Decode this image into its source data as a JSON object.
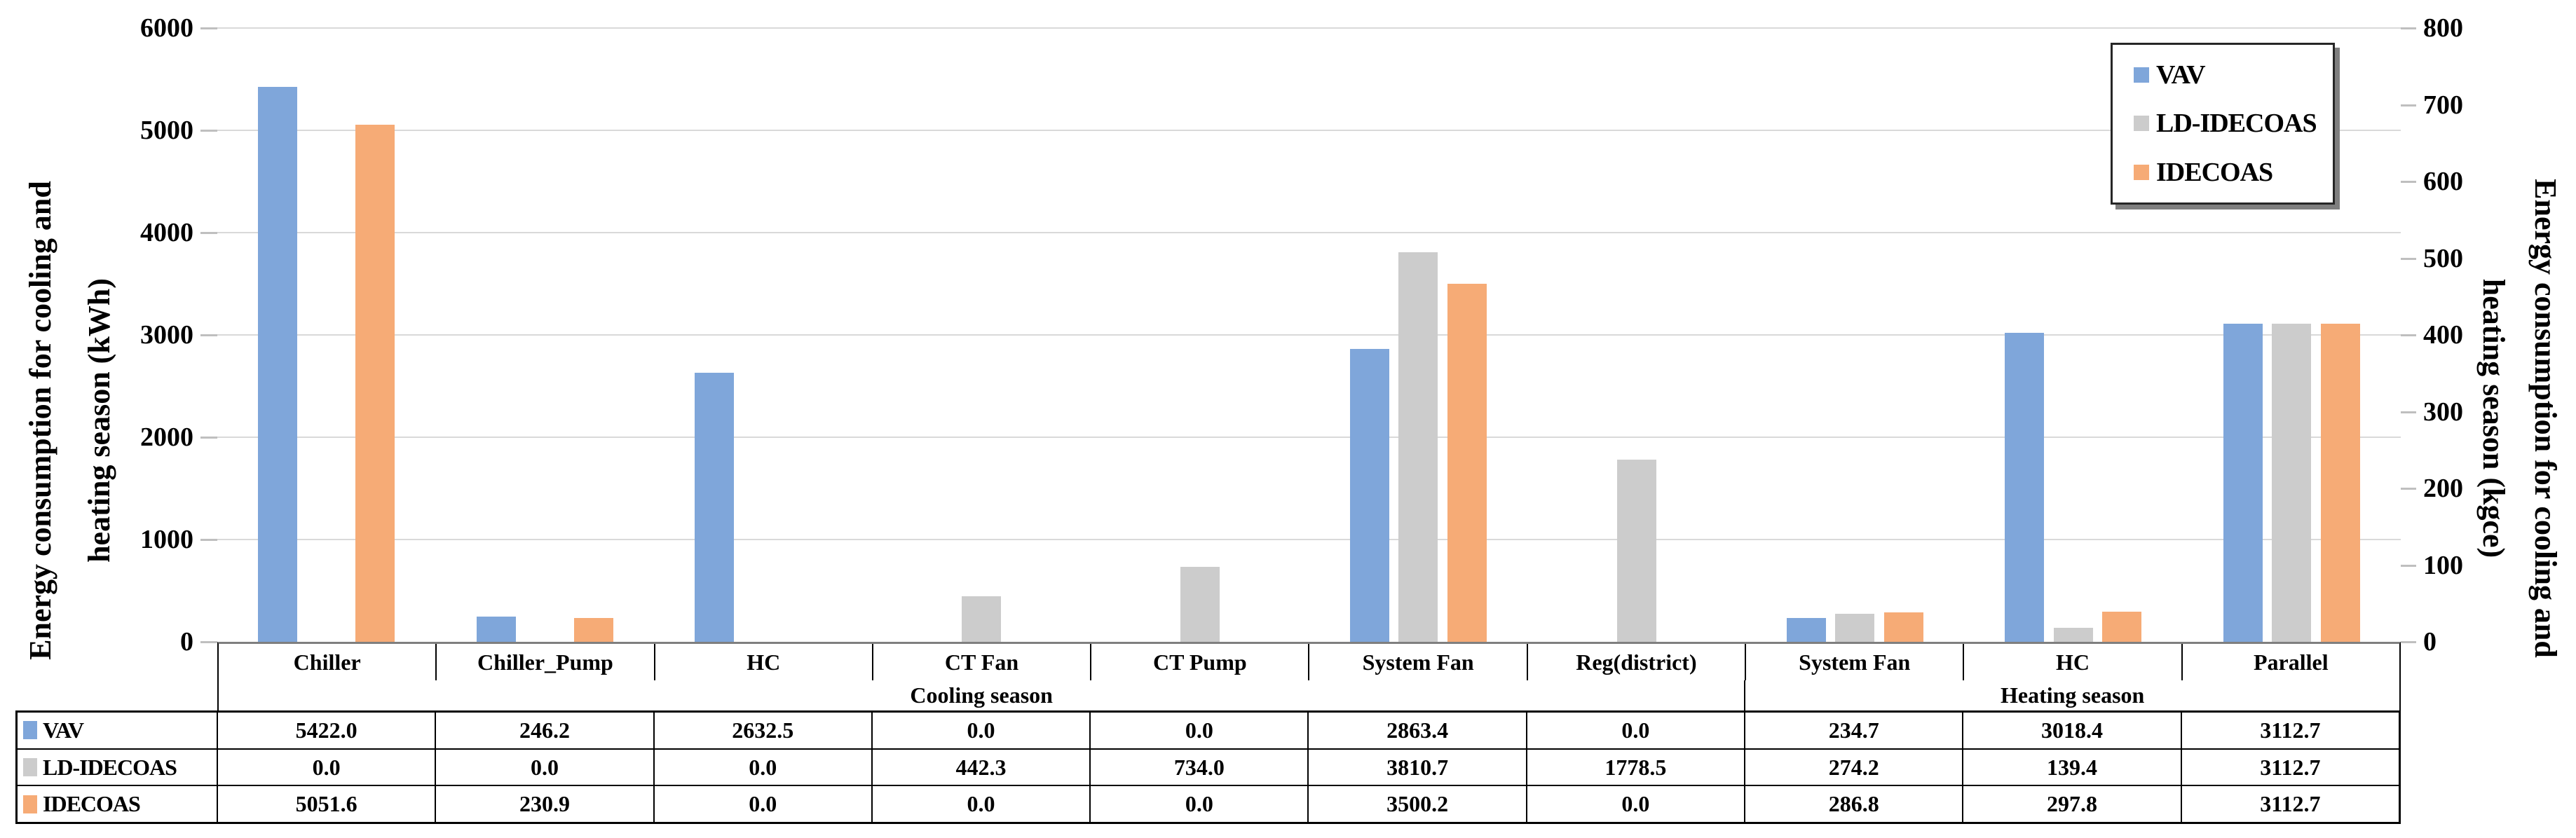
{
  "chart_data": {
    "type": "bar",
    "title": "",
    "categories": [
      "Chiller",
      "Chiller_Pump",
      "HC",
      "CT Fan",
      "CT Pump",
      "System Fan",
      "Reg(district)",
      "System Fan",
      "HC",
      "Parallel"
    ],
    "season_groups": [
      {
        "label": "Cooling season",
        "span": 7
      },
      {
        "label": "Heating season",
        "span": 3
      }
    ],
    "series": [
      {
        "name": "VAV",
        "color": "#7fa6da",
        "values": [
          5422.0,
          246.2,
          2632.5,
          0.0,
          0.0,
          2863.4,
          0.0,
          234.7,
          3018.4,
          3112.7
        ]
      },
      {
        "name": "LD-IDECOAS",
        "color": "#cccccc",
        "values": [
          0.0,
          0.0,
          0.0,
          442.3,
          734.0,
          3810.7,
          1778.5,
          274.2,
          139.4,
          3112.7
        ]
      },
      {
        "name": "IDECOAS",
        "color": "#f6ab76",
        "values": [
          5051.6,
          230.9,
          0.0,
          0.0,
          0.0,
          3500.2,
          0.0,
          286.8,
          297.8,
          3112.7
        ]
      }
    ],
    "left_axis": {
      "title_line1": "Energy consumption for cooling and",
      "title_line2": "heating season (kWh)",
      "min": 0,
      "max": 6000,
      "step": 1000
    },
    "right_axis": {
      "title_line1": "Energy consumption for cooling and",
      "title_line2": "heating season (kgce)",
      "min": 0,
      "max": 800,
      "step": 100
    },
    "legend": {
      "position": "top-right",
      "entries": [
        "VAV",
        "LD-IDECOAS",
        "IDECOAS"
      ]
    },
    "grid": true,
    "value_decimals": 1
  },
  "colors": {
    "gridline": "#d9d9d9",
    "axis_line": "#7f7f7f",
    "tick": "#bfbfbf",
    "table_border": "#000000",
    "legend_shadow": "#7f7f7f"
  }
}
